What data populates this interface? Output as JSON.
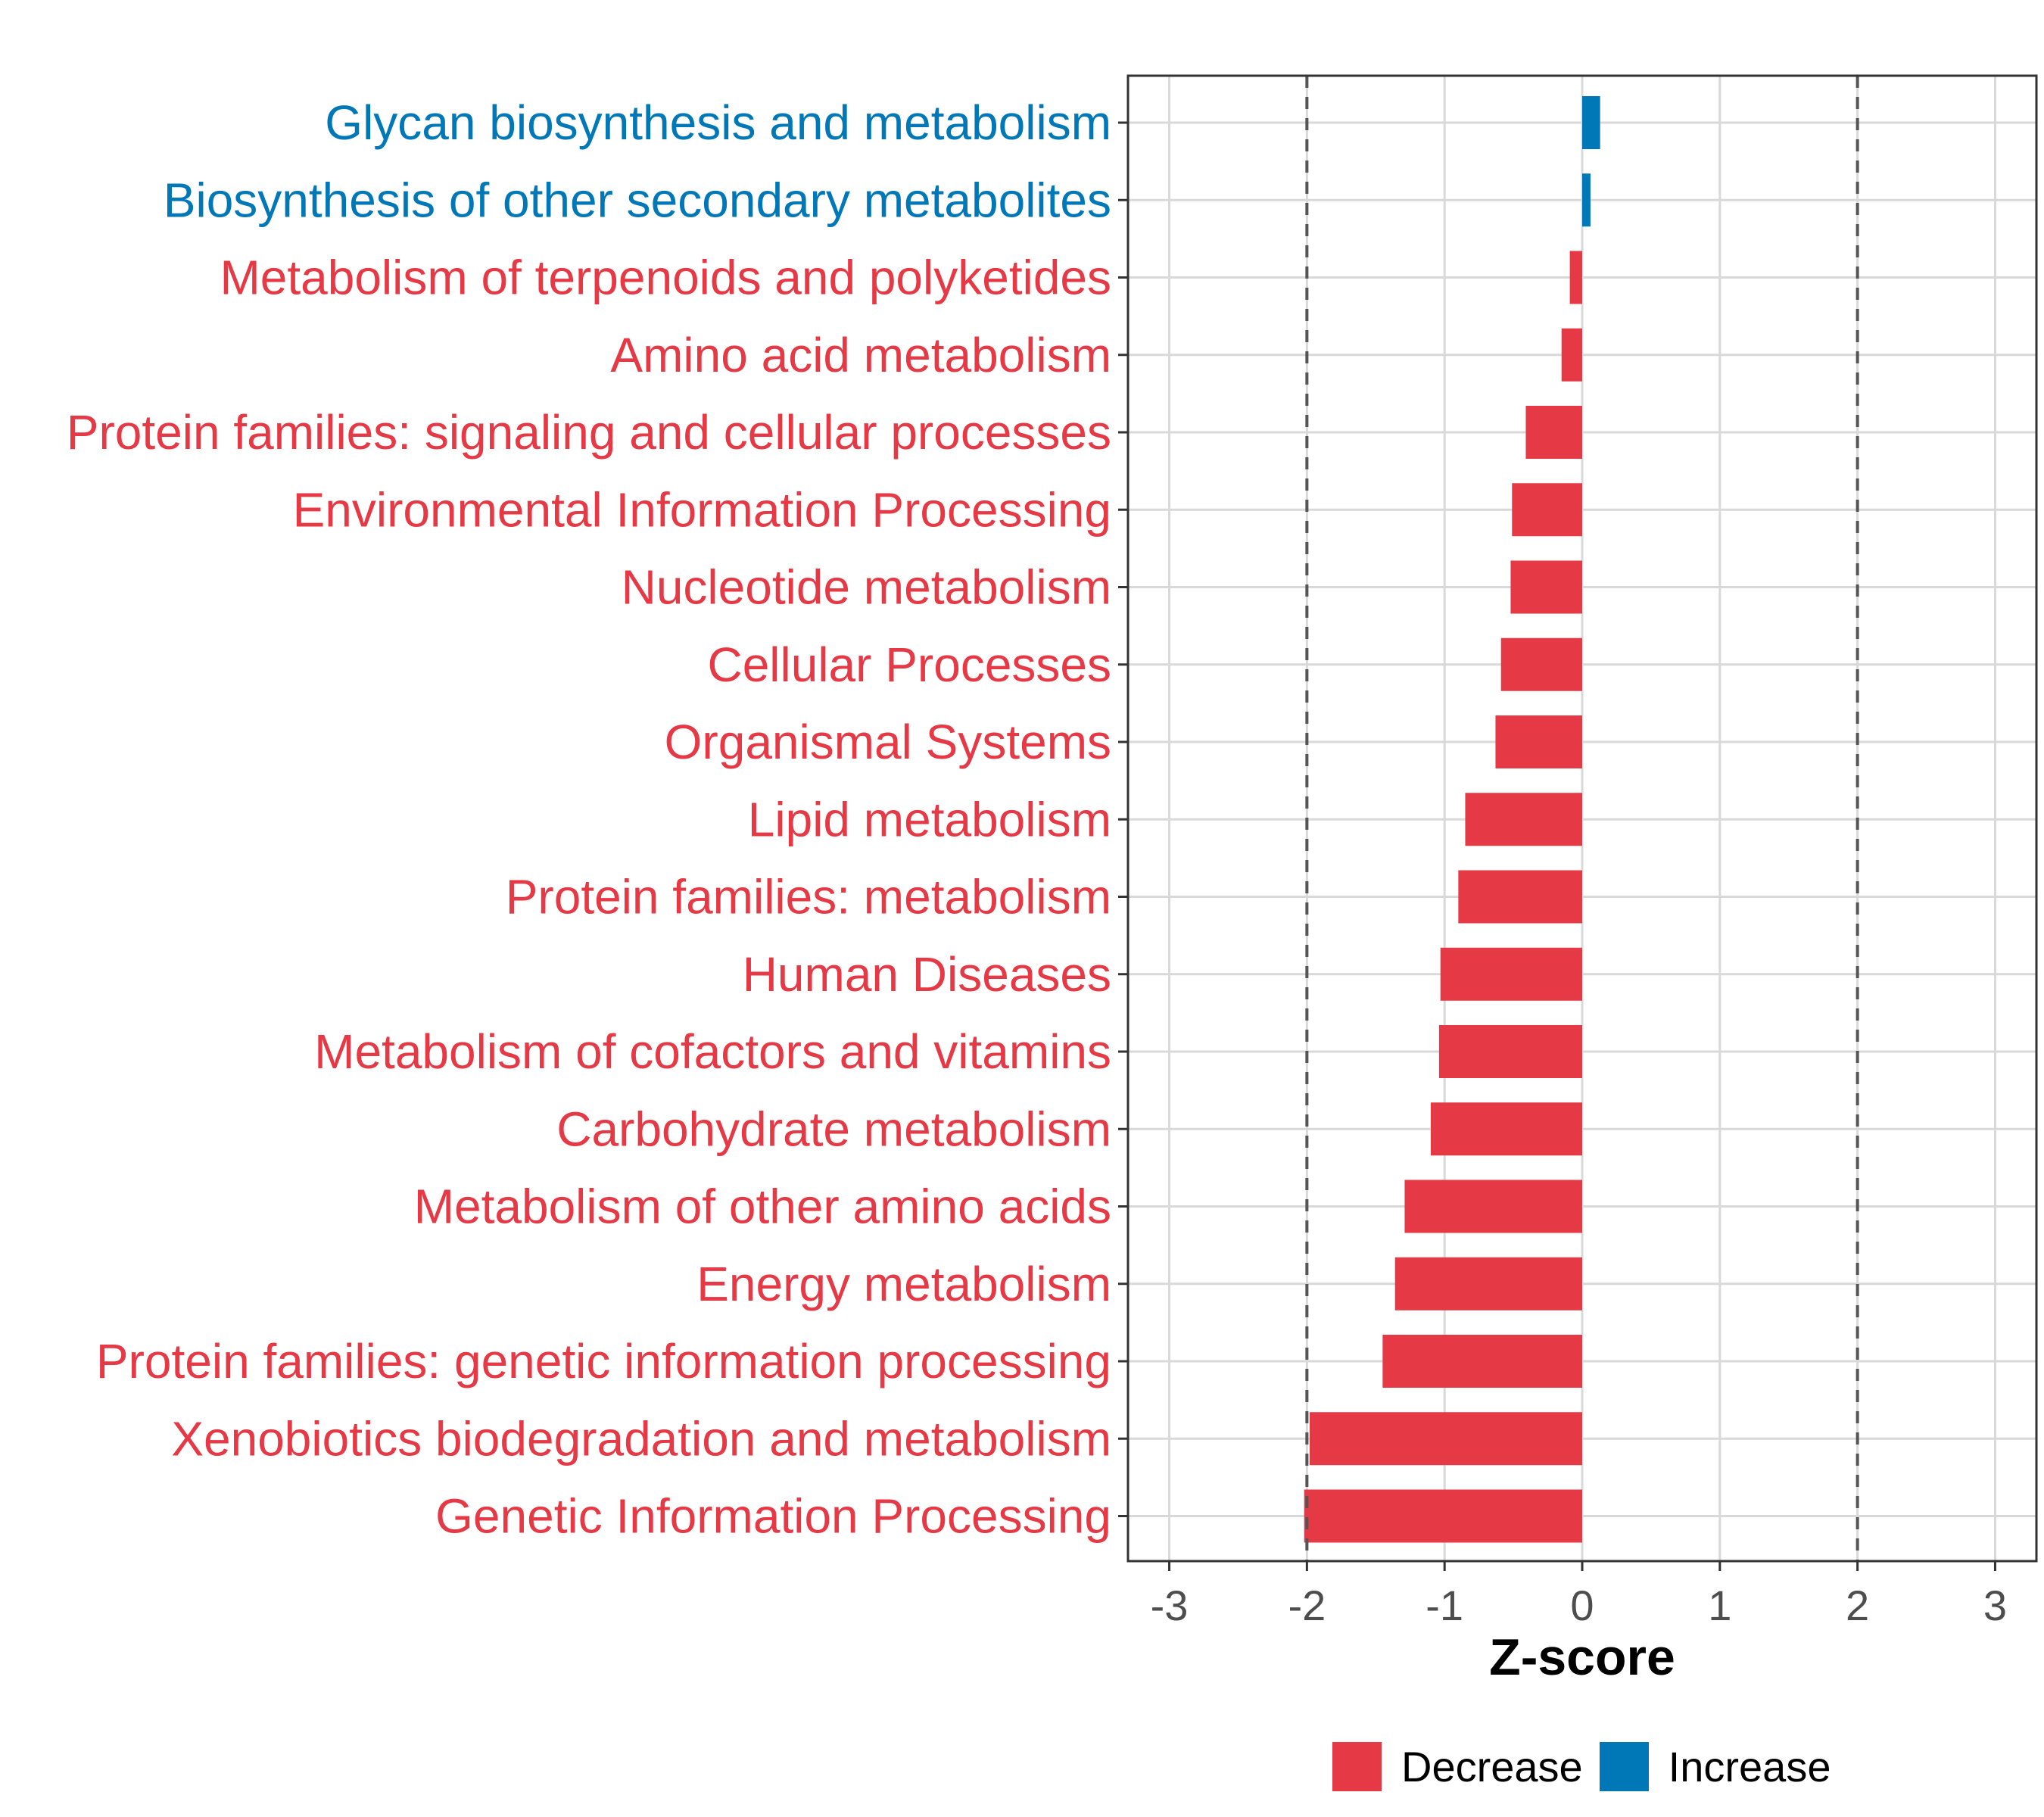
{
  "chart_data": {
    "type": "bar",
    "orientation": "horizontal",
    "title": "",
    "xlabel": "Z-score",
    "ylabel": "",
    "xlim": [
      -3.3,
      3.3
    ],
    "xticks": [
      -3,
      -2,
      -1,
      0,
      1,
      2,
      3
    ],
    "reference_lines": [
      -2,
      2
    ],
    "grid": true,
    "legend_position": "bottom",
    "categories": [
      "Glycan biosynthesis and metabolism",
      "Biosynthesis of other secondary metabolites",
      "Metabolism of terpenoids and polyketides",
      "Amino acid metabolism",
      "Protein families: signaling and cellular processes",
      "Environmental Information Processing",
      "Nucleotide metabolism",
      "Cellular Processes",
      "Organismal Systems",
      "Lipid metabolism",
      "Protein families: metabolism",
      "Human Diseases",
      "Metabolism of cofactors and vitamins",
      "Carbohydrate metabolism",
      "Metabolism of other amino acids",
      "Energy metabolism",
      "Protein families: genetic information processing",
      "Xenobiotics biodegradation and metabolism",
      "Genetic Information Processing"
    ],
    "values": [
      0.13,
      0.06,
      -0.09,
      -0.15,
      -0.41,
      -0.51,
      -0.52,
      -0.59,
      -0.63,
      -0.85,
      -0.9,
      -1.03,
      -1.04,
      -1.1,
      -1.29,
      -1.36,
      -1.45,
      -1.98,
      -2.02
    ],
    "groups": [
      "Increase",
      "Increase",
      "Decrease",
      "Decrease",
      "Decrease",
      "Decrease",
      "Decrease",
      "Decrease",
      "Decrease",
      "Decrease",
      "Decrease",
      "Decrease",
      "Decrease",
      "Decrease",
      "Decrease",
      "Decrease",
      "Decrease",
      "Decrease",
      "Decrease"
    ],
    "legend": [
      {
        "name": "Decrease",
        "color": "#E63946"
      },
      {
        "name": "Increase",
        "color": "#0077B6"
      }
    ]
  }
}
